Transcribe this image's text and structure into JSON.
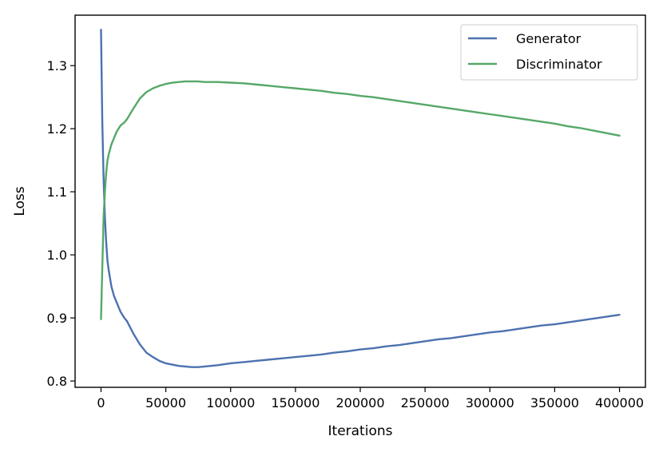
{
  "chart_data": {
    "type": "line",
    "title": "",
    "xlabel": "Iterations",
    "ylabel": "Loss",
    "xlim": [
      -20000,
      420000
    ],
    "ylim": [
      0.79,
      1.38
    ],
    "xticks": [
      0,
      50000,
      100000,
      150000,
      200000,
      250000,
      300000,
      350000,
      400000
    ],
    "xtick_labels": [
      "0",
      "50000",
      "100000",
      "150000",
      "200000",
      "250000",
      "300000",
      "350000",
      "400000"
    ],
    "yticks": [
      0.8,
      0.9,
      1.0,
      1.1,
      1.2,
      1.3
    ],
    "ytick_labels": [
      "0.8",
      "0.9",
      "1.0",
      "1.1",
      "1.2",
      "1.3"
    ],
    "grid": false,
    "legend_position": "top-right",
    "series": [
      {
        "name": "Generator",
        "color": "#4c72b0",
        "x": [
          0,
          1000,
          2000,
          3000,
          4000,
          5000,
          6000,
          8000,
          10000,
          12000,
          15000,
          18000,
          20000,
          25000,
          30000,
          35000,
          40000,
          45000,
          50000,
          55000,
          60000,
          65000,
          70000,
          75000,
          80000,
          90000,
          100000,
          110000,
          120000,
          130000,
          140000,
          150000,
          160000,
          170000,
          180000,
          190000,
          200000,
          210000,
          220000,
          230000,
          240000,
          250000,
          260000,
          270000,
          280000,
          290000,
          300000,
          310000,
          320000,
          330000,
          340000,
          350000,
          360000,
          370000,
          380000,
          390000,
          400000
        ],
        "y": [
          1.357,
          1.21,
          1.12,
          1.06,
          1.02,
          0.99,
          0.975,
          0.95,
          0.935,
          0.925,
          0.91,
          0.9,
          0.895,
          0.875,
          0.858,
          0.845,
          0.838,
          0.832,
          0.828,
          0.826,
          0.824,
          0.823,
          0.822,
          0.822,
          0.823,
          0.825,
          0.828,
          0.83,
          0.832,
          0.834,
          0.836,
          0.838,
          0.84,
          0.842,
          0.845,
          0.847,
          0.85,
          0.852,
          0.855,
          0.857,
          0.86,
          0.863,
          0.866,
          0.868,
          0.871,
          0.874,
          0.877,
          0.879,
          0.882,
          0.885,
          0.888,
          0.89,
          0.893,
          0.896,
          0.899,
          0.902,
          0.905
        ]
      },
      {
        "name": "Discriminator",
        "color": "#55a868",
        "x": [
          0,
          1000,
          2000,
          3000,
          4000,
          5000,
          6000,
          8000,
          10000,
          12000,
          15000,
          18000,
          20000,
          25000,
          30000,
          35000,
          40000,
          45000,
          50000,
          55000,
          60000,
          65000,
          70000,
          75000,
          80000,
          90000,
          100000,
          110000,
          120000,
          130000,
          140000,
          150000,
          160000,
          170000,
          180000,
          190000,
          200000,
          210000,
          220000,
          230000,
          240000,
          250000,
          260000,
          270000,
          280000,
          290000,
          300000,
          310000,
          320000,
          330000,
          340000,
          350000,
          360000,
          370000,
          380000,
          390000,
          400000
        ],
        "y": [
          0.898,
          0.98,
          1.06,
          1.1,
          1.13,
          1.15,
          1.16,
          1.175,
          1.185,
          1.195,
          1.205,
          1.21,
          1.215,
          1.232,
          1.248,
          1.258,
          1.264,
          1.268,
          1.271,
          1.273,
          1.274,
          1.275,
          1.275,
          1.275,
          1.274,
          1.274,
          1.273,
          1.272,
          1.27,
          1.268,
          1.266,
          1.264,
          1.262,
          1.26,
          1.257,
          1.255,
          1.252,
          1.25,
          1.247,
          1.244,
          1.241,
          1.238,
          1.235,
          1.232,
          1.229,
          1.226,
          1.223,
          1.22,
          1.217,
          1.214,
          1.211,
          1.208,
          1.204,
          1.201,
          1.197,
          1.193,
          1.189
        ]
      }
    ]
  }
}
